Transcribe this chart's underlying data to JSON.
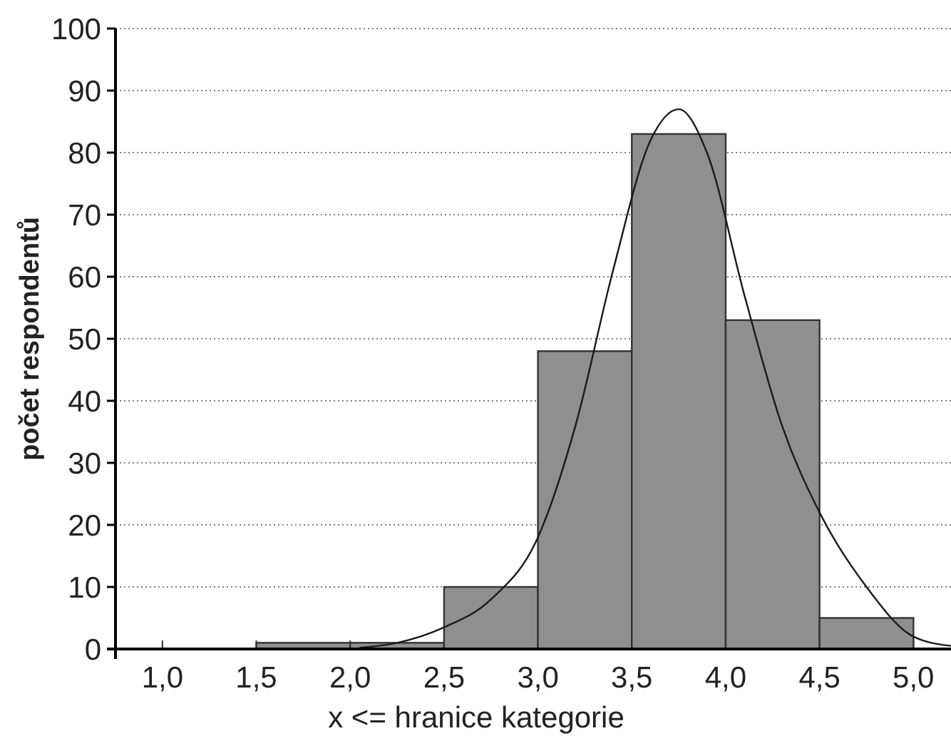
{
  "chart_data": {
    "type": "histogram",
    "xlabel": "x <= hranice kategorie",
    "ylabel": "počet respondentů",
    "bins": [
      1.0,
      1.5,
      2.0,
      2.5,
      3.0,
      3.5,
      4.0,
      4.5,
      5.0
    ],
    "values": [
      0,
      1,
      1,
      10,
      48,
      83,
      53,
      5
    ],
    "color": "#8f8f8f",
    "series": [
      {
        "type": "line",
        "color": "#1a1a1a",
        "x": [
          2.05,
          2.25,
          2.5,
          2.75,
          3.0,
          3.2,
          3.4,
          3.6,
          3.75,
          3.9,
          4.1,
          4.3,
          4.5,
          4.75,
          5.0,
          5.2
        ],
        "values": [
          0.2,
          1,
          3.5,
          8,
          18,
          36,
          61,
          82,
          87,
          80,
          57,
          36,
          22,
          10,
          2,
          0.5
        ]
      }
    ],
    "xlim": [
      0.75,
      5.2
    ],
    "xticks": [
      {
        "value": 1,
        "label": "1,0"
      },
      {
        "value": 1.5,
        "label": "1,5"
      },
      {
        "value": 2,
        "label": "2,0"
      },
      {
        "value": 2.5,
        "label": "2,5"
      },
      {
        "value": 3,
        "label": "3,0"
      },
      {
        "value": 3.5,
        "label": "3,5"
      },
      {
        "value": 4,
        "label": "4,0"
      },
      {
        "value": 4.5,
        "label": "4,5"
      },
      {
        "value": 5,
        "label": "5,0"
      }
    ],
    "ylim": [
      0,
      100
    ],
    "yticks": [
      0,
      10,
      20,
      30,
      40,
      50,
      60,
      70,
      80,
      90,
      100
    ],
    "grid": "y"
  }
}
